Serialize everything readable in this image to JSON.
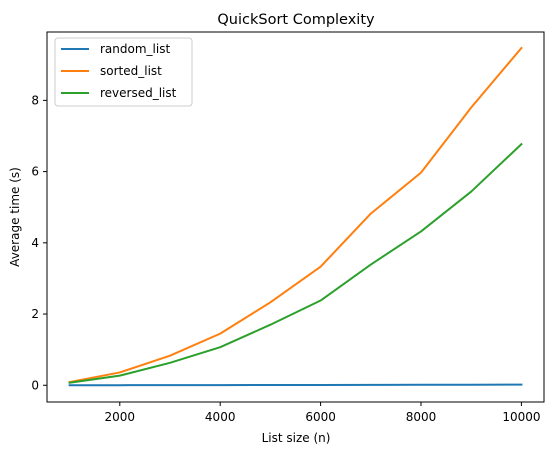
{
  "chart_data": {
    "type": "line",
    "title": "QuickSort Complexity",
    "xlabel": "List size (n)",
    "ylabel": "Average time (s)",
    "x": [
      1000,
      2000,
      3000,
      4000,
      5000,
      6000,
      7000,
      8000,
      9000,
      10000
    ],
    "xlim": [
      550,
      10450
    ],
    "ylim": [
      -0.47,
      9.92
    ],
    "xticks": [
      2000,
      4000,
      6000,
      8000,
      10000
    ],
    "xtick_labels": [
      "2000",
      "4000",
      "6000",
      "8000",
      "10000"
    ],
    "yticks": [
      0,
      2,
      4,
      6,
      8
    ],
    "ytick_labels": [
      "0",
      "2",
      "4",
      "6",
      "8"
    ],
    "grid": false,
    "legend_position": "top-left",
    "series": [
      {
        "name": "random_list",
        "color": "#1f77b4",
        "values": [
          0.001,
          0.002,
          0.004,
          0.005,
          0.007,
          0.009,
          0.011,
          0.013,
          0.015,
          0.017
        ]
      },
      {
        "name": "sorted_list",
        "color": "#ff7f0e",
        "values": [
          0.09,
          0.36,
          0.83,
          1.45,
          2.33,
          3.33,
          4.82,
          5.97,
          7.8,
          9.47
        ]
      },
      {
        "name": "reversed_list",
        "color": "#2ca02c",
        "values": [
          0.07,
          0.27,
          0.63,
          1.07,
          1.7,
          2.38,
          3.39,
          4.32,
          5.44,
          6.77
        ]
      }
    ]
  }
}
